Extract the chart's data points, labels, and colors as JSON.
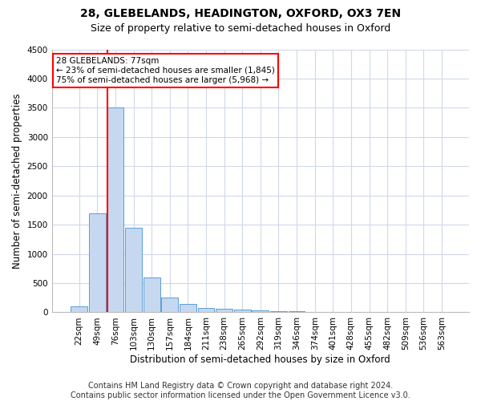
{
  "title1": "28, GLEBELANDS, HEADINGTON, OXFORD, OX3 7EN",
  "title2": "Size of property relative to semi-detached houses in Oxford",
  "xlabel": "Distribution of semi-detached houses by size in Oxford",
  "ylabel": "Number of semi-detached properties",
  "footnote": "Contains HM Land Registry data © Crown copyright and database right 2024.\nContains public sector information licensed under the Open Government Licence v3.0.",
  "categories": [
    "22sqm",
    "49sqm",
    "76sqm",
    "103sqm",
    "130sqm",
    "157sqm",
    "184sqm",
    "211sqm",
    "238sqm",
    "265sqm",
    "292sqm",
    "319sqm",
    "346sqm",
    "374sqm",
    "401sqm",
    "428sqm",
    "455sqm",
    "482sqm",
    "509sqm",
    "536sqm",
    "563sqm"
  ],
  "bar_values": [
    100,
    1700,
    3500,
    1450,
    600,
    260,
    150,
    80,
    65,
    50,
    30,
    20,
    15,
    10,
    5,
    5,
    0,
    0,
    0,
    0,
    0
  ],
  "bar_color": "#c5d8f0",
  "bar_edge_color": "#5a9fd4",
  "grid_color": "#d0d8e8",
  "annotation_box_text": "28 GLEBELANDS: 77sqm\n← 23% of semi-detached houses are smaller (1,845)\n75% of semi-detached houses are larger (5,968) →",
  "annotation_box_color": "white",
  "annotation_box_edge": "red",
  "red_line_color": "red",
  "red_line_bar_index": 2,
  "ylim": [
    0,
    4500
  ],
  "yticks": [
    0,
    500,
    1000,
    1500,
    2000,
    2500,
    3000,
    3500,
    4000,
    4500
  ],
  "title1_fontsize": 10,
  "title2_fontsize": 9,
  "footnote_fontsize": 7,
  "axis_label_fontsize": 8.5,
  "tick_fontsize": 7.5,
  "annot_fontsize": 7.5
}
